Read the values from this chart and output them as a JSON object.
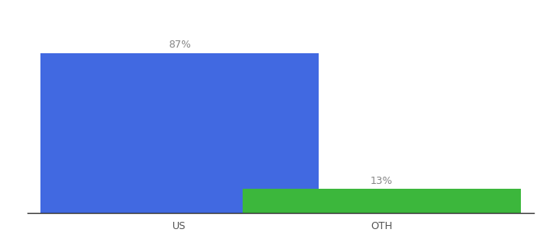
{
  "categories": [
    "US",
    "OTH"
  ],
  "values": [
    87,
    13
  ],
  "bar_colors": [
    "#4169e1",
    "#3cb73c"
  ],
  "label_texts": [
    "87%",
    "13%"
  ],
  "ylim": [
    0,
    100
  ],
  "background_color": "#ffffff",
  "label_fontsize": 9,
  "tick_fontsize": 9,
  "title_fontsize": 9,
  "bar_width": 0.55,
  "x_positions": [
    0.3,
    0.7
  ]
}
